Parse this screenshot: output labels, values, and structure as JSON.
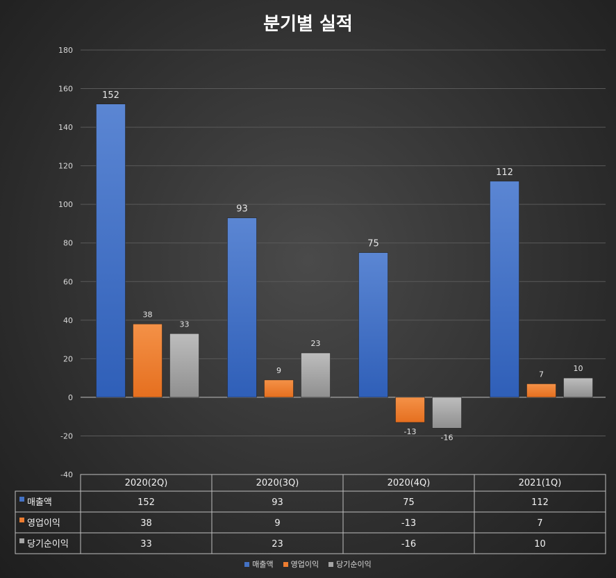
{
  "chart_data": {
    "type": "bar",
    "title": "분기별 실적",
    "categories": [
      "2020(2Q)",
      "2020(3Q)",
      "2020(4Q)",
      "2021(1Q)"
    ],
    "series": [
      {
        "name": "매출액",
        "values": [
          152,
          93,
          75,
          112
        ],
        "color": "#4472C4"
      },
      {
        "name": "영업이익",
        "values": [
          38,
          9,
          -13,
          7
        ],
        "color": "#ED7D31"
      },
      {
        "name": "당기순이익",
        "values": [
          33,
          23,
          -16,
          10
        ],
        "color": "#A5A5A5"
      }
    ],
    "ylim": [
      -40,
      180
    ],
    "yticks": [
      -40,
      -20,
      0,
      20,
      40,
      60,
      80,
      100,
      120,
      140,
      160,
      180
    ],
    "grid": true,
    "data_table": true,
    "legend": "bottom"
  }
}
